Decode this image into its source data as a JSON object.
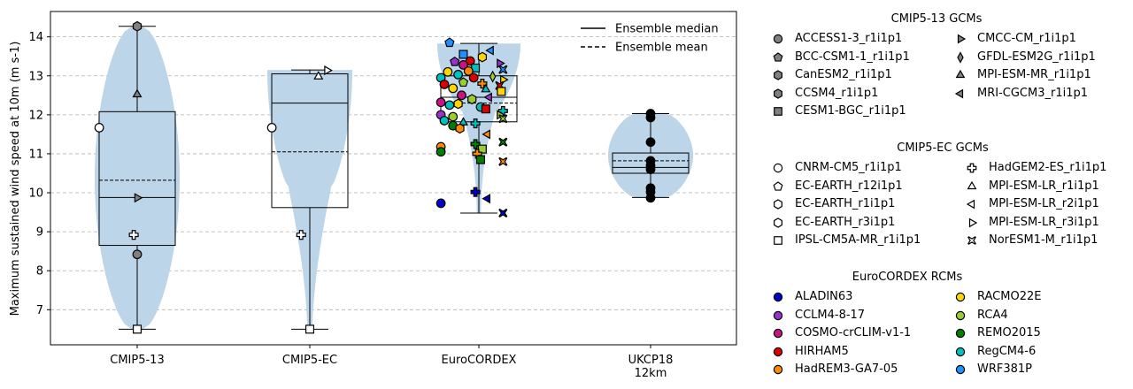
{
  "chart_data": {
    "type": "violin",
    "ylabel": "Maximum sustained wind speed at 10m (m s-1)",
    "ylim": [
      6.1,
      14.65
    ],
    "yticks": [
      7,
      8,
      9,
      10,
      11,
      12,
      13,
      14
    ],
    "grid": "y-dashed",
    "categories": [
      "CMIP5-13",
      "CMIP5-EC",
      "EuroCORDEX",
      "UKCP18\n12km"
    ],
    "violins": [
      {
        "name": "CMIP5-13",
        "min": 6.5,
        "max": 14.27,
        "q1": 8.65,
        "q3": 12.08,
        "median": 9.88,
        "mean": 10.32
      },
      {
        "name": "CMIP5-EC",
        "min": 6.5,
        "max": 13.15,
        "q1": 9.62,
        "q3": 13.05,
        "median": 12.3,
        "mean": 11.05
      },
      {
        "name": "EuroCORDEX",
        "min": 9.48,
        "max": 13.83,
        "q1": 11.82,
        "q3": 13.0,
        "median": 12.45,
        "mean": 12.3
      },
      {
        "name": "UKCP18 12km",
        "min": 9.88,
        "max": 12.03,
        "q1": 10.5,
        "q3": 11.02,
        "median": 10.65,
        "mean": 10.82
      }
    ],
    "line_legend": [
      {
        "label": "Ensemble median",
        "style": "solid"
      },
      {
        "label": "Ensemble mean",
        "style": "dashed"
      }
    ],
    "points": [
      {
        "g": 0,
        "dx": 0,
        "y": 14.27,
        "m": "hexagon",
        "f": "#808080"
      },
      {
        "g": 0,
        "dx": 0,
        "y": 12.52,
        "m": "triangle-up",
        "f": "#808080"
      },
      {
        "g": 0,
        "dx": -0.22,
        "y": 11.67,
        "m": "circle",
        "f": "#ffffff"
      },
      {
        "g": 0,
        "dx": 0,
        "y": 9.87,
        "m": "triangle-right",
        "f": "#808080"
      },
      {
        "g": 0,
        "dx": -0.02,
        "y": 8.92,
        "m": "plus",
        "f": "#ffffff"
      },
      {
        "g": 0,
        "dx": 0,
        "y": 8.42,
        "m": "circle",
        "f": "#808080"
      },
      {
        "g": 0,
        "dx": 0,
        "y": 6.5,
        "m": "square",
        "f": "#ffffff"
      },
      {
        "g": 1,
        "dx": 0.1,
        "y": 13.14,
        "m": "triangle-right",
        "f": "#ffffff"
      },
      {
        "g": 1,
        "dx": 0.05,
        "y": 12.98,
        "m": "triangle-up",
        "f": "#ffffff"
      },
      {
        "g": 1,
        "dx": -0.22,
        "y": 11.67,
        "m": "circle",
        "f": "#ffffff"
      },
      {
        "g": 1,
        "dx": -0.05,
        "y": 8.92,
        "m": "plus",
        "f": "#ffffff"
      },
      {
        "g": 1,
        "dx": 0,
        "y": 6.5,
        "m": "square",
        "f": "#ffffff"
      },
      {
        "g": 2,
        "dx": -0.17,
        "y": 13.85,
        "m": "pentagon",
        "f": "#1e90ff"
      },
      {
        "g": 2,
        "dx": 0.07,
        "y": 13.65,
        "m": "triangle-left",
        "f": "#1e90ff"
      },
      {
        "g": 2,
        "dx": -0.09,
        "y": 13.55,
        "m": "square",
        "f": "#1e90ff"
      },
      {
        "g": 2,
        "dx": 0.02,
        "y": 13.48,
        "m": "hexagon",
        "f": "#ffd700"
      },
      {
        "g": 2,
        "dx": -0.05,
        "y": 13.38,
        "m": "circle",
        "f": "#dd0000"
      },
      {
        "g": 2,
        "dx": -0.14,
        "y": 13.36,
        "m": "pentagon",
        "f": "#9932cc"
      },
      {
        "g": 2,
        "dx": 0.12,
        "y": 13.32,
        "m": "triangle-right",
        "f": "#9932cc"
      },
      {
        "g": 2,
        "dx": -0.09,
        "y": 13.28,
        "m": "circle",
        "f": "#c71585"
      },
      {
        "g": 2,
        "dx": -0.02,
        "y": 13.2,
        "m": "square",
        "f": "#00bfbf"
      },
      {
        "g": 2,
        "dx": 0.14,
        "y": 13.16,
        "m": "cross",
        "f": "#1e90ff"
      },
      {
        "g": 2,
        "dx": -0.18,
        "y": 13.1,
        "m": "circle",
        "f": "#ffd700"
      },
      {
        "g": 2,
        "dx": -0.06,
        "y": 13.12,
        "m": "circle",
        "f": "#ff8c00"
      },
      {
        "g": 2,
        "dx": -0.12,
        "y": 13.03,
        "m": "circle",
        "f": "#00bfbf"
      },
      {
        "g": 2,
        "dx": 0.08,
        "y": 12.98,
        "m": "diamond",
        "f": "#9acd32"
      },
      {
        "g": 2,
        "dx": -0.03,
        "y": 12.95,
        "m": "circle",
        "f": "#dd0000"
      },
      {
        "g": 2,
        "dx": -0.22,
        "y": 12.95,
        "m": "circle",
        "f": "#00bfbf"
      },
      {
        "g": 2,
        "dx": 0.14,
        "y": 12.9,
        "m": "triangle-right",
        "f": "#ffd700"
      },
      {
        "g": 2,
        "dx": -0.09,
        "y": 12.83,
        "m": "pentagon",
        "f": "#9acd32"
      },
      {
        "g": 2,
        "dx": -0.2,
        "y": 12.78,
        "m": "circle",
        "f": "#dd0000"
      },
      {
        "g": 2,
        "dx": 0.02,
        "y": 12.8,
        "m": "plus",
        "f": "#ff8c00"
      },
      {
        "g": 2,
        "dx": 0.12,
        "y": 12.75,
        "m": "cross",
        "f": "#dd0000"
      },
      {
        "g": 2,
        "dx": -0.15,
        "y": 12.68,
        "m": "circle",
        "f": "#ffd700"
      },
      {
        "g": 2,
        "dx": 0.04,
        "y": 12.65,
        "m": "triangle-up",
        "f": "#00bfbf"
      },
      {
        "g": 2,
        "dx": 0.13,
        "y": 12.6,
        "m": "square",
        "f": "#ffd700"
      },
      {
        "g": 2,
        "dx": -0.1,
        "y": 12.5,
        "m": "circle",
        "f": "#c71585"
      },
      {
        "g": 2,
        "dx": -0.22,
        "y": 12.32,
        "m": "circle",
        "f": "#c71585"
      },
      {
        "g": 2,
        "dx": 0.06,
        "y": 12.45,
        "m": "triangle-left",
        "f": "#9932cc"
      },
      {
        "g": 2,
        "dx": -0.04,
        "y": 12.4,
        "m": "hexagon",
        "f": "#9acd32"
      },
      {
        "g": 2,
        "dx": -0.17,
        "y": 12.25,
        "m": "circle",
        "f": "#00bfbf"
      },
      {
        "g": 2,
        "dx": -0.12,
        "y": 12.28,
        "m": "hexagon",
        "f": "#ffd700"
      },
      {
        "g": 2,
        "dx": 0.01,
        "y": 12.2,
        "m": "circle",
        "f": "#00bfbf"
      },
      {
        "g": 2,
        "dx": 0.04,
        "y": 12.15,
        "m": "square",
        "f": "#dd0000"
      },
      {
        "g": 2,
        "dx": 0.14,
        "y": 12.1,
        "m": "plus",
        "f": "#00bfbf"
      },
      {
        "g": 2,
        "dx": -0.22,
        "y": 12.0,
        "m": "circle",
        "f": "#9932cc"
      },
      {
        "g": 2,
        "dx": 0.12,
        "y": 12.0,
        "m": "triangle-right",
        "f": "#9acd32"
      },
      {
        "g": 2,
        "dx": -0.15,
        "y": 11.95,
        "m": "circle",
        "f": "#9acd32"
      },
      {
        "g": 2,
        "dx": -0.2,
        "y": 11.85,
        "m": "circle",
        "f": "#00bfbf"
      },
      {
        "g": 2,
        "dx": 0.14,
        "y": 11.9,
        "m": "cross",
        "f": "#9acd32"
      },
      {
        "g": 2,
        "dx": -0.09,
        "y": 11.8,
        "m": "triangle-up",
        "f": "#00bfbf"
      },
      {
        "g": 2,
        "dx": -0.02,
        "y": 11.78,
        "m": "plus",
        "f": "#00bfbf"
      },
      {
        "g": 2,
        "dx": -0.15,
        "y": 11.72,
        "m": "circle",
        "f": "#008000"
      },
      {
        "g": 2,
        "dx": -0.11,
        "y": 11.65,
        "m": "hexagon",
        "f": "#ff8c00"
      },
      {
        "g": 2,
        "dx": 0.05,
        "y": 11.5,
        "m": "triangle-left",
        "f": "#ff8c00"
      },
      {
        "g": 2,
        "dx": -0.02,
        "y": 11.25,
        "m": "plus",
        "f": "#008000"
      },
      {
        "g": 2,
        "dx": 0.14,
        "y": 11.3,
        "m": "cross",
        "f": "#008000"
      },
      {
        "g": 2,
        "dx": -0.22,
        "y": 11.18,
        "m": "circle",
        "f": "#ff8c00"
      },
      {
        "g": 2,
        "dx": 0.02,
        "y": 11.12,
        "m": "square",
        "f": "#9acd32"
      },
      {
        "g": 2,
        "dx": -0.22,
        "y": 11.05,
        "m": "circle",
        "f": "#008000"
      },
      {
        "g": 2,
        "dx": -0.01,
        "y": 11.0,
        "m": "plus",
        "f": "#ff8c00"
      },
      {
        "g": 2,
        "dx": 0.01,
        "y": 10.85,
        "m": "square",
        "f": "#008000"
      },
      {
        "g": 2,
        "dx": 0.14,
        "y": 10.8,
        "m": "cross",
        "f": "#ff8c00"
      },
      {
        "g": 2,
        "dx": -0.02,
        "y": 10.02,
        "m": "plus",
        "f": "#0000cd"
      },
      {
        "g": 2,
        "dx": 0.05,
        "y": 9.85,
        "m": "triangle-left",
        "f": "#0000cd"
      },
      {
        "g": 2,
        "dx": -0.22,
        "y": 9.73,
        "m": "circle",
        "f": "#0000cd"
      },
      {
        "g": 2,
        "dx": 0.14,
        "y": 9.48,
        "m": "cross",
        "f": "#0000cd"
      },
      {
        "g": 3,
        "dx": 0,
        "y": 12.03,
        "m": "circle",
        "f": "#000000"
      },
      {
        "g": 3,
        "dx": 0,
        "y": 11.93,
        "m": "circle",
        "f": "#000000"
      },
      {
        "g": 3,
        "dx": 0,
        "y": 11.3,
        "m": "circle",
        "f": "#000000"
      },
      {
        "g": 3,
        "dx": 0,
        "y": 10.82,
        "m": "circle",
        "f": "#000000"
      },
      {
        "g": 3,
        "dx": 0,
        "y": 10.7,
        "m": "circle",
        "f": "#000000"
      },
      {
        "g": 3,
        "dx": 0,
        "y": 10.6,
        "m": "circle",
        "f": "#000000"
      },
      {
        "g": 3,
        "dx": 0,
        "y": 10.12,
        "m": "circle",
        "f": "#000000"
      },
      {
        "g": 3,
        "dx": 0,
        "y": 10.02,
        "m": "circle",
        "f": "#000000"
      },
      {
        "g": 3,
        "dx": 0,
        "y": 9.87,
        "m": "circle",
        "f": "#000000"
      }
    ]
  },
  "legends": [
    {
      "title": "CMIP5-13 GCMs",
      "items": [
        {
          "label": "ACCESS1-3_r1i1p1",
          "m": "circle",
          "f": "#808080"
        },
        {
          "label": "BCC-CSM1-1_r1i1p1",
          "m": "pentagon",
          "f": "#808080"
        },
        {
          "label": "CanESM2_r1i1p1",
          "m": "hexagon",
          "f": "#808080"
        },
        {
          "label": "CCSM4_r1i1p1",
          "m": "hexagon",
          "f": "#808080"
        },
        {
          "label": "CESM1-BGC_r1i1p1",
          "m": "square",
          "f": "#808080"
        },
        {
          "label": "CMCC-CM_r1i1p1",
          "m": "triangle-right",
          "f": "#808080"
        },
        {
          "label": "GFDL-ESM2G_r1i1p1",
          "m": "diamond",
          "f": "#808080"
        },
        {
          "label": "MPI-ESM-MR_r1i1p1",
          "m": "triangle-up",
          "f": "#808080"
        },
        {
          "label": "MRI-CGCM3_r1i1p1",
          "m": "triangle-left",
          "f": "#808080"
        }
      ]
    },
    {
      "title": "CMIP5-EC GCMs",
      "items": [
        {
          "label": "CNRM-CM5_r1i1p1",
          "m": "circle",
          "f": "#ffffff"
        },
        {
          "label": "EC-EARTH_r12i1p1",
          "m": "pentagon",
          "f": "#ffffff"
        },
        {
          "label": "EC-EARTH_r1i1p1",
          "m": "hexagon",
          "f": "#ffffff"
        },
        {
          "label": "EC-EARTH_r3i1p1",
          "m": "hexagon",
          "f": "#ffffff"
        },
        {
          "label": "IPSL-CM5A-MR_r1i1p1",
          "m": "square",
          "f": "#ffffff"
        },
        {
          "label": "HadGEM2-ES_r1i1p1",
          "m": "plus",
          "f": "#ffffff"
        },
        {
          "label": "MPI-ESM-LR_r1i1p1",
          "m": "triangle-up",
          "f": "#ffffff"
        },
        {
          "label": "MPI-ESM-LR_r2i1p1",
          "m": "triangle-left",
          "f": "#ffffff"
        },
        {
          "label": "MPI-ESM-LR_r3i1p1",
          "m": "triangle-right",
          "f": "#ffffff"
        },
        {
          "label": "NorESM1-M_r1i1p1",
          "m": "cross",
          "f": "#ffffff"
        }
      ]
    },
    {
      "title": "EuroCORDEX RCMs",
      "items": [
        {
          "label": "ALADIN63",
          "m": "circle",
          "f": "#0000cd"
        },
        {
          "label": "CCLM4-8-17",
          "m": "circle",
          "f": "#9932cc"
        },
        {
          "label": "COSMO-crCLIM-v1-1",
          "m": "circle",
          "f": "#c71585"
        },
        {
          "label": "HIRHAM5",
          "m": "circle",
          "f": "#dd0000"
        },
        {
          "label": "HadREM3-GA7-05",
          "m": "circle",
          "f": "#ff8c00"
        },
        {
          "label": "RACMO22E",
          "m": "circle",
          "f": "#ffd700"
        },
        {
          "label": "RCA4",
          "m": "circle",
          "f": "#9acd32"
        },
        {
          "label": "REMO2015",
          "m": "circle",
          "f": "#008000"
        },
        {
          "label": "RegCM4-6",
          "m": "circle",
          "f": "#00bfbf"
        },
        {
          "label": "WRF381P",
          "m": "circle",
          "f": "#1e90ff"
        }
      ]
    }
  ]
}
